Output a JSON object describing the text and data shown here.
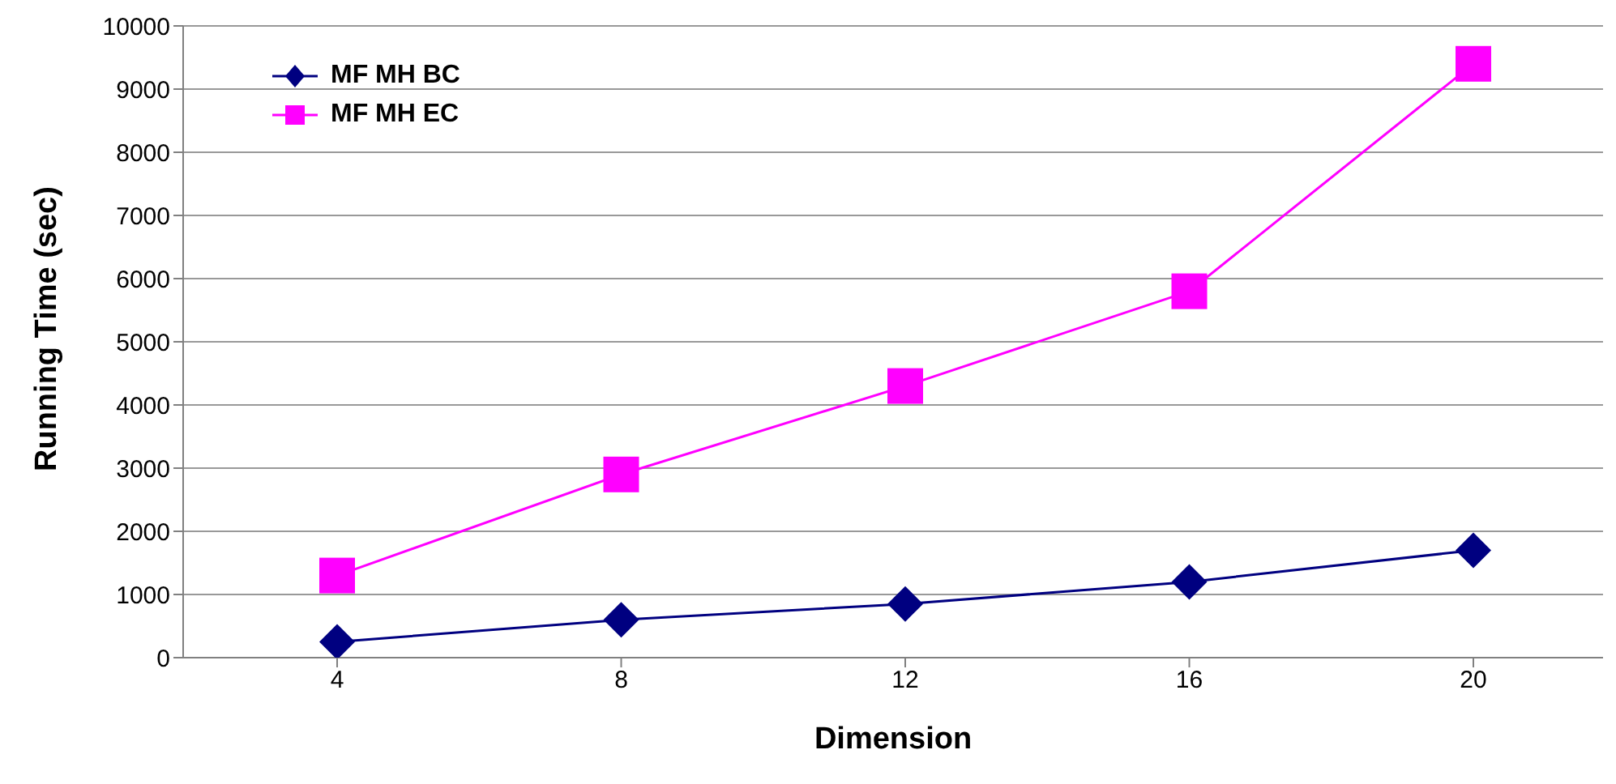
{
  "chart_data": {
    "type": "line",
    "xlabel": "Dimension",
    "ylabel": "Running Time (sec)",
    "categories": [
      "4",
      "8",
      "12",
      "16",
      "20"
    ],
    "series": [
      {
        "name": "MF MH BC",
        "color": "#000080",
        "marker": "diamond",
        "values": [
          250,
          600,
          850,
          1200,
          1700
        ]
      },
      {
        "name": "MF MH EC",
        "color": "#ff00ff",
        "marker": "square",
        "values": [
          1300,
          2900,
          4300,
          5800,
          9400
        ]
      }
    ],
    "ylim": [
      0,
      10000
    ],
    "yticks": [
      0,
      1000,
      2000,
      3000,
      4000,
      5000,
      6000,
      7000,
      8000,
      9000,
      10000
    ],
    "grid": "y",
    "legend": "top left"
  }
}
